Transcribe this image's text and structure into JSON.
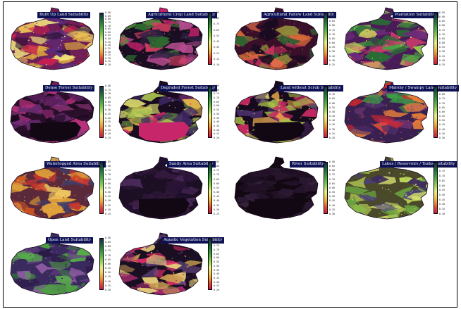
{
  "panels": [
    {
      "title": "Built Up Land Suitability",
      "palette": "builtup",
      "ticks": [
        "0.90",
        "0.85",
        "0.80",
        "0.75",
        "0.70",
        "0.65",
        "0.60",
        "0.55",
        "0.50",
        "0.45",
        "0.40",
        "0.35",
        "0.30",
        "0.25",
        "0.20",
        "0.15",
        "0.10"
      ]
    },
    {
      "title": "Agricultural Crop Land Suitability",
      "palette": "agriculture",
      "ticks": [
        "0.95",
        "0.85",
        "0.75",
        "0.65",
        "0.55",
        "0.45",
        "0.35",
        "0.25",
        "0.15",
        "0.10"
      ]
    },
    {
      "title": "Agricultural Fallow Land Suitability",
      "palette": "fallow",
      "ticks": [
        "0.95",
        "0.90",
        "0.85",
        "0.80",
        "0.75",
        "0.70",
        "0.65",
        "0.60",
        "0.55",
        "0.50",
        "0.45",
        "0.40",
        "0.35"
      ]
    },
    {
      "title": "Plantation Suitability",
      "palette": "plantation",
      "ticks": [
        "0.95",
        "0.90",
        "0.85",
        "0.80",
        "0.75",
        "0.70",
        "0.65",
        "0.60",
        "0.55",
        "0.50",
        "0.45",
        "0.40",
        "0.35"
      ]
    },
    {
      "title": "Dense Forest Suitability",
      "palette": "dense",
      "ticks": [
        "0.80",
        "0.75",
        "0.70",
        "0.65",
        "0.60",
        "0.55",
        "0.50",
        "0.45",
        "0.40",
        "0.35",
        "0.30",
        "0.25",
        "0.20",
        "0.15"
      ]
    },
    {
      "title": "Degraded Forest Suitability",
      "palette": "degraded",
      "ticks": [
        "0.85",
        "0.80",
        "0.75",
        "0.70",
        "0.65",
        "0.60",
        "0.55",
        "0.50",
        "0.45",
        "0.40",
        "0.35",
        "0.30",
        "0.25",
        "0.20"
      ]
    },
    {
      "title": "Land without Scrub Suitability",
      "palette": "scrub",
      "ticks": [
        "0.80",
        "0.75",
        "0.70",
        "0.65",
        "0.60",
        "0.55",
        "0.50",
        "0.45",
        "0.40",
        "0.35",
        "0.30",
        "0.25",
        "0.20"
      ]
    },
    {
      "title": "Marshy / Swampy Land Suitability",
      "palette": "marshy",
      "ticks": [
        "0.90",
        "0.85",
        "0.80",
        "0.75",
        "0.70",
        "0.65",
        "0.60",
        "0.55",
        "0.50",
        "0.45",
        "0.40",
        "0.35",
        "0.30"
      ]
    },
    {
      "title": "Waterlogged Area Suitability",
      "palette": "waterlogged",
      "ticks": [
        "0.85",
        "0.80",
        "0.75",
        "0.70",
        "0.65",
        "0.60",
        "0.55",
        "0.50",
        "0.45",
        "0.40",
        "0.35",
        "0.30",
        "0.25"
      ]
    },
    {
      "title": "Sandy Area Suitability",
      "palette": "sandy",
      "ticks": [
        "0.85",
        "0.80",
        "0.75",
        "0.70",
        "0.65",
        "0.60",
        "0.55",
        "0.50",
        "0.45",
        "0.40",
        "0.35",
        "0.30",
        "0.25"
      ]
    },
    {
      "title": "River Suitability",
      "palette": "river",
      "ticks": [
        "0.90",
        "0.85",
        "0.80",
        "0.75",
        "0.70",
        "0.65",
        "0.60",
        "0.55",
        "0.50",
        "0.45",
        "0.40",
        "0.35",
        "0.30"
      ]
    },
    {
      "title": "Lakes / Reservoirs / Tanks Suitability",
      "palette": "lakes",
      "ticks": [
        "0.85",
        "0.80",
        "0.75",
        "0.70",
        "0.65",
        "0.60",
        "0.55",
        "0.50",
        "0.45",
        "0.40",
        "0.35",
        "0.30"
      ]
    },
    {
      "title": "Open Land Suitability",
      "palette": "open",
      "ticks": [
        "0.90",
        "0.85",
        "0.80",
        "0.75",
        "0.70",
        "0.65",
        "0.60",
        "0.55",
        "0.50",
        "0.45",
        "0.40",
        "0.35",
        "0.30"
      ]
    },
    {
      "title": "Aquatic Vegetation Suitability",
      "palette": "aquatic",
      "ticks": [
        "0.85",
        "0.80",
        "0.75",
        "0.70",
        "0.65",
        "0.60",
        "0.55",
        "0.50",
        "0.45",
        "0.40",
        "0.35",
        "0.30",
        "0.25",
        "0.20"
      ]
    }
  ],
  "palettes": {
    "builtup": {
      "base": "#6f1f55",
      "colors": [
        "#d9a640",
        "#f0e27c",
        "#c81f4f",
        "#2a1133",
        "#5a2a7a",
        "#eec65a"
      ]
    },
    "agriculture": {
      "base": "#1a0e22",
      "colors": [
        "#c7216a",
        "#2e6a30",
        "#4e8d3a",
        "#2f2044",
        "#b54b8f",
        "#d84063"
      ]
    },
    "fallow": {
      "base": "#3a0f2a",
      "colors": [
        "#c93060",
        "#2e6230",
        "#d86a38",
        "#1a0c20",
        "#8f8a3a",
        "#e06a4a"
      ]
    },
    "plantation": {
      "base": "#4a1c57",
      "colors": [
        "#49a043",
        "#93c94f",
        "#c93a6a",
        "#6a2a7a",
        "#d8d060",
        "#2b6b36"
      ]
    },
    "dense": {
      "base": "#2a0f2a",
      "colors": [
        "#8e2a72",
        "#561f5a",
        "#b8307a",
        "#1a0a1e",
        "#6a2a70",
        "#9a3a80"
      ]
    },
    "degraded": {
      "base": "#1a0c20",
      "colors": [
        "#cfd06a",
        "#3f2a66",
        "#e1b34a",
        "#d4266a",
        "#546f3a",
        "#a8c050"
      ]
    },
    "scrub": {
      "base": "#160b1c",
      "colors": [
        "#d6cf62",
        "#4a2f6a",
        "#a8c04a",
        "#c52a62",
        "#e7a94a",
        "#3a1e4a"
      ]
    },
    "marshy": {
      "base": "#3a2050",
      "colors": [
        "#3aa045",
        "#d6262e",
        "#e6803a",
        "#4f2f6a",
        "#e64a3a",
        "#7a3a7a"
      ]
    },
    "waterlogged": {
      "base": "#5a2a3a",
      "colors": [
        "#e1a23a",
        "#d0541f",
        "#3f3f6a",
        "#6a3a6a",
        "#efc660",
        "#c8362e"
      ]
    },
    "sandy": {
      "base": "#1c0f24",
      "colors": [
        "#3a1e44",
        "#2a1436",
        "#4a2a5a",
        "#201030",
        "#351a40",
        "#2e1838"
      ]
    },
    "river": {
      "base": "#110812",
      "colors": [
        "#1e1024",
        "#2a1630",
        "#3a2540",
        "#180a1a",
        "#2c1a34",
        "#241228"
      ]
    },
    "lakes": {
      "base": "#4a4a2a",
      "colors": [
        "#bfd858",
        "#6aa040",
        "#d8e070",
        "#4c3f7a",
        "#8aba48",
        "#3e2c5e"
      ]
    },
    "open": {
      "base": "#3a2a5e",
      "colors": [
        "#2e7a34",
        "#4fa043",
        "#6a3c8a",
        "#8a5aa0",
        "#2a1a46",
        "#57aa4a"
      ]
    },
    "aquatic": {
      "base": "#1a0f22",
      "colors": [
        "#d72a66",
        "#e9d07a",
        "#4a3a6a",
        "#c8a050",
        "#a82a70",
        "#6a4a82"
      ]
    }
  }
}
